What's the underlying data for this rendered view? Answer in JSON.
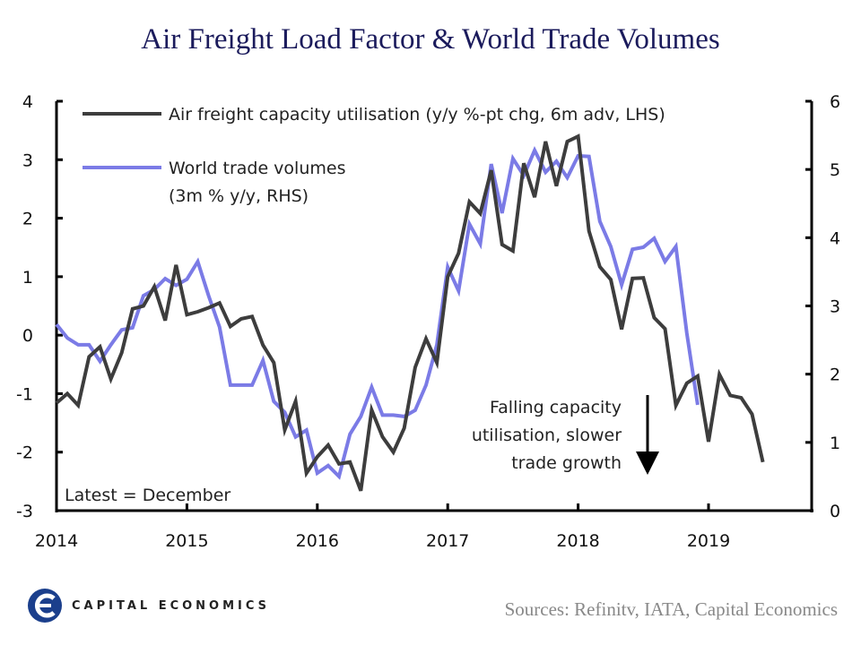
{
  "title": "Air Freight Load Factor & World Trade Volumes",
  "source": "Sources: Refinitv, IATA, Capital Economics",
  "logo_text": "CAPITAL ECONOMICS",
  "chart_data": {
    "type": "line",
    "title": "Air Freight Load Factor & World Trade Volumes",
    "x_start": "2014-01",
    "x_ticks": [
      "2014",
      "2015",
      "2016",
      "2017",
      "2018",
      "2019"
    ],
    "y_left": {
      "range": [
        -3,
        4
      ],
      "ticks": [
        "4",
        "3",
        "2",
        "1",
        "0",
        "-1",
        "-2",
        "-3"
      ]
    },
    "y_right": {
      "range": [
        0,
        6
      ],
      "ticks": [
        "6",
        "5",
        "4",
        "3",
        "2",
        "1",
        "0"
      ]
    },
    "grid": false,
    "legend_placement": "top-left",
    "annotations": [
      "Falling capacity",
      "utilisation, slower",
      "trade growth",
      "Latest = December"
    ],
    "series": [
      {
        "name": "Air freight capacity utilisation (y/y %-pt chg, 6m adv, LHS)",
        "axis": "left",
        "color": "#3d3d3d",
        "values": [
          -1.16,
          -1.0,
          -1.2,
          -0.37,
          -0.2,
          -0.75,
          -0.3,
          0.45,
          0.5,
          0.83,
          0.25,
          1.2,
          0.35,
          0.4,
          0.47,
          0.55,
          0.15,
          0.28,
          0.32,
          -0.17,
          -0.47,
          -1.62,
          -1.13,
          -2.36,
          -2.08,
          -1.88,
          -2.2,
          -2.17,
          -2.66,
          -1.28,
          -1.74,
          -2.0,
          -1.59,
          -0.55,
          -0.06,
          -0.47,
          1.0,
          1.4,
          2.28,
          2.08,
          2.82,
          1.55,
          1.44,
          2.94,
          2.36,
          3.31,
          2.55,
          3.31,
          3.4,
          1.78,
          1.17,
          0.95,
          0.1,
          0.97,
          0.98,
          0.3,
          0.11,
          -1.2,
          -0.82,
          -0.7,
          -1.82,
          -0.67,
          -1.03,
          -1.07,
          -1.35,
          -2.17
        ]
      },
      {
        "name_lines": [
          "World trade volumes",
          "(3m % y/y, RHS)"
        ],
        "axis": "right",
        "color": "#7b7be6",
        "values": [
          2.73,
          2.53,
          2.43,
          2.43,
          2.19,
          2.43,
          2.65,
          2.68,
          3.15,
          3.24,
          3.4,
          3.3,
          3.39,
          3.65,
          3.15,
          2.69,
          1.84,
          1.84,
          1.84,
          2.2,
          1.6,
          1.44,
          1.08,
          1.18,
          0.55,
          0.66,
          0.5,
          1.12,
          1.38,
          1.81,
          1.4,
          1.4,
          1.38,
          1.47,
          1.84,
          2.43,
          3.57,
          3.22,
          4.2,
          3.91,
          5.08,
          4.36,
          5.16,
          4.91,
          5.28,
          4.96,
          5.12,
          4.88,
          5.2,
          5.19,
          4.24,
          3.87,
          3.31,
          3.83,
          3.86,
          3.99,
          3.65,
          3.87,
          2.6,
          1.55
        ]
      }
    ]
  }
}
